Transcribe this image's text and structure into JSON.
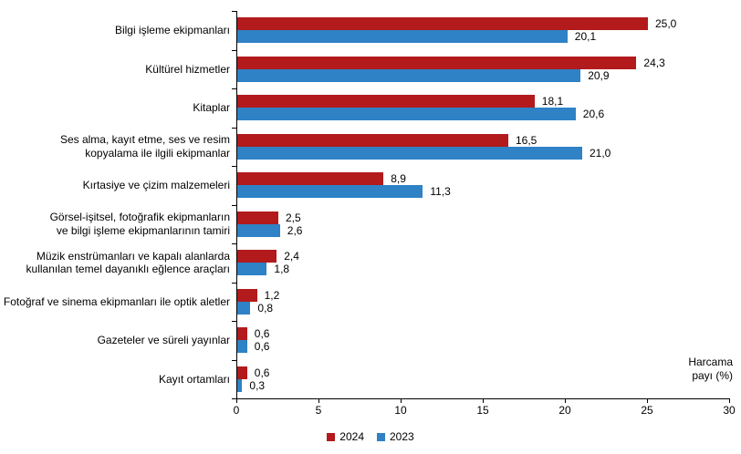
{
  "chart_data": {
    "type": "bar",
    "orientation": "horizontal",
    "title": "",
    "xlabel": "Harcama\npayı (%)",
    "x_ticks": [
      "0",
      "5",
      "10",
      "15",
      "20",
      "25",
      "30"
    ],
    "xlim": [
      0,
      30
    ],
    "grid": false,
    "legend_position": "bottom-center",
    "categories": [
      "Bilgi işleme ekipmanları",
      "Kültürel hizmetler",
      "Kitaplar",
      "Ses alma, kayıt etme, ses ve resim\nkopyalama ile ilgili ekipmanlar",
      "Kırtasiye ve çizim malzemeleri",
      "Görsel-işitsel, fotoğrafik ekipmanların\nve bilgi işleme ekipmanlarının tamiri",
      "Müzik enstrümanları ve kapalı alanlarda\nkullanılan temel dayanıklı eğlence araçları",
      "Fotoğraf ve sinema ekipmanları ile optik aletler",
      "Gazeteler ve süreli yayınlar",
      "Kayıt ortamları"
    ],
    "series": [
      {
        "name": "2024",
        "color": "#B21A1C",
        "values": [
          25.0,
          24.3,
          18.1,
          16.5,
          8.9,
          2.5,
          2.4,
          1.2,
          0.6,
          0.6
        ],
        "labels": [
          "25,0",
          "24,3",
          "18,1",
          "16,5",
          "8,9",
          "2,5",
          "2,4",
          "1,2",
          "0,6",
          "0,6"
        ]
      },
      {
        "name": "2023",
        "color": "#2E82C5",
        "values": [
          20.1,
          20.9,
          20.6,
          21.0,
          11.3,
          2.6,
          1.8,
          0.8,
          0.6,
          0.3
        ],
        "labels": [
          "20,1",
          "20,9",
          "20,6",
          "21,0",
          "11,3",
          "2,6",
          "1,8",
          "0,8",
          "0,6",
          "0,3"
        ]
      }
    ],
    "axis_color": "#000000",
    "text_color": "#000000",
    "background": "#FFFFFF"
  }
}
